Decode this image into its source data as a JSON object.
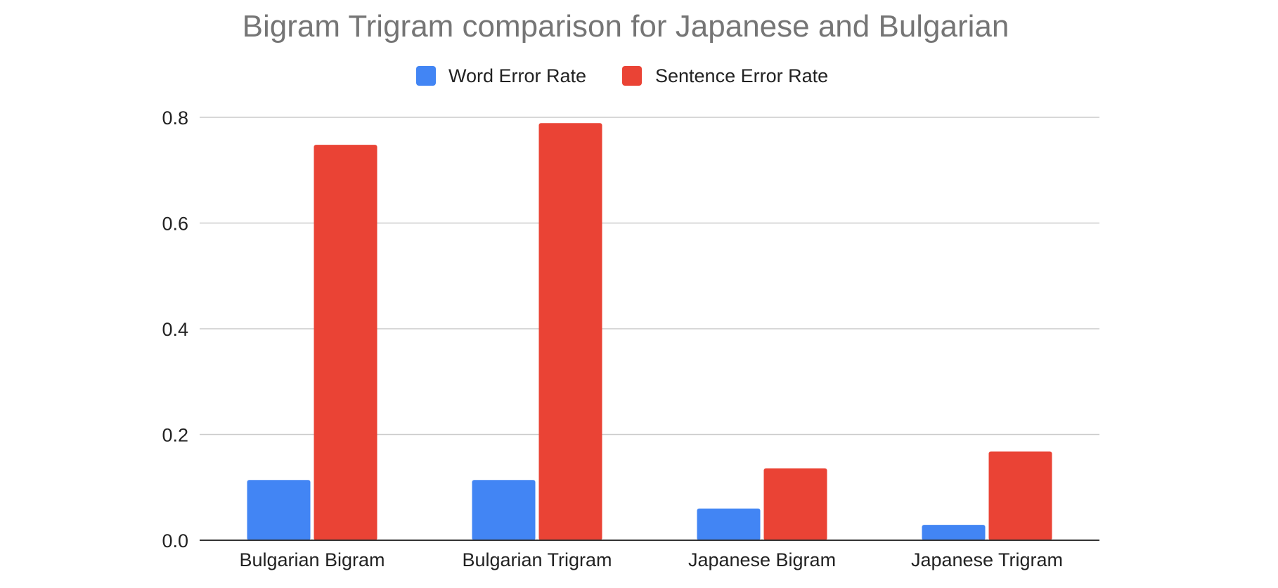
{
  "chart_data": {
    "type": "bar",
    "title": "Bigram Trigram comparison for Japanese and Bulgarian",
    "xlabel": "",
    "ylabel": "",
    "categories": [
      "Bulgarian Bigram",
      "Bulgarian Trigram",
      "Japanese Bigram",
      "Japanese Trigram"
    ],
    "series": [
      {
        "name": "Word Error Rate",
        "color": "#4285f4",
        "values": [
          0.114,
          0.114,
          0.06,
          0.029
        ]
      },
      {
        "name": "Sentence Error Rate",
        "color": "#ea4335",
        "values": [
          0.748,
          0.789,
          0.136,
          0.168
        ]
      }
    ],
    "ylim": [
      0,
      0.8
    ],
    "yticks": [
      {
        "value": 0,
        "label": "0.0"
      },
      {
        "value": 0.2,
        "label": "0.2"
      },
      {
        "value": 0.4,
        "label": "0.4"
      },
      {
        "value": 0.6,
        "label": "0.6"
      },
      {
        "value": 0.8,
        "label": "0.8"
      }
    ],
    "grid": true,
    "legend_position": "top-center",
    "colors": {
      "title": "#757575",
      "text": "#222222",
      "gridline": "#cccccc",
      "axis": "#333333"
    }
  }
}
